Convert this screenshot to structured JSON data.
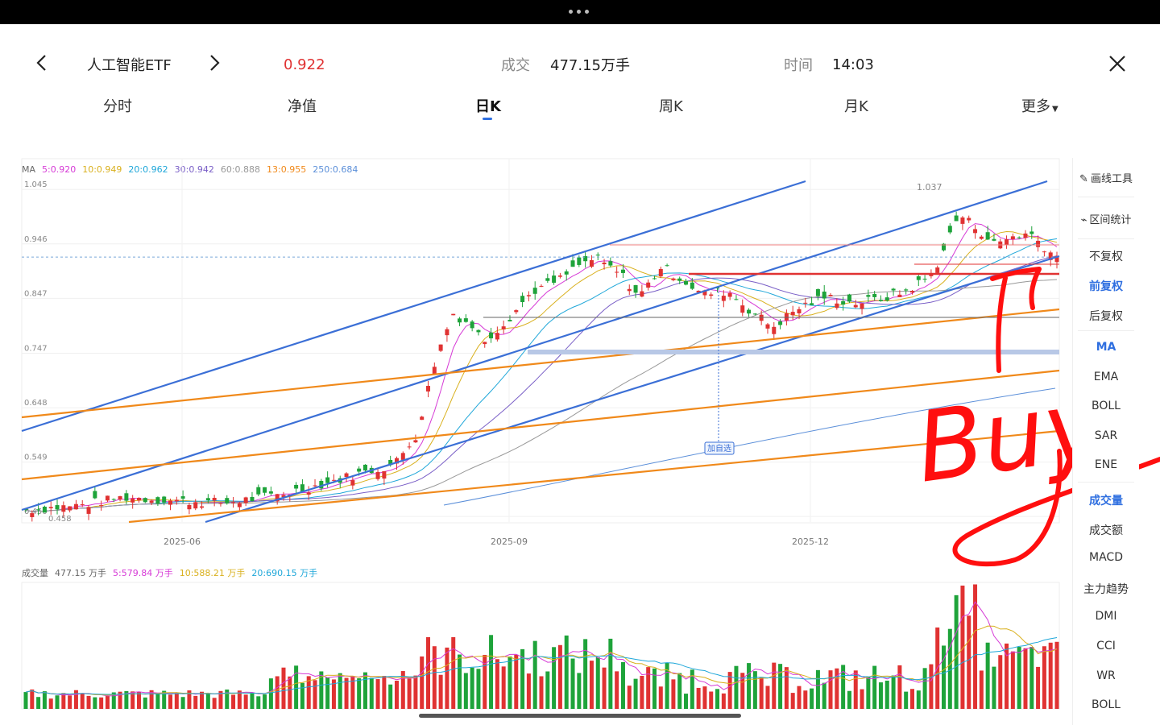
{
  "header": {
    "name": "人工智能ETF",
    "price": "0.922",
    "volume_label": "成交",
    "volume_value": "477.15万手",
    "time_label": "时间",
    "time_value": "14:03"
  },
  "tabs": [
    {
      "label": "分时"
    },
    {
      "label": "净值"
    },
    {
      "label": "日K",
      "active": true
    },
    {
      "label": "周K"
    },
    {
      "label": "月K"
    },
    {
      "label": "更多"
    }
  ],
  "ma_legend": {
    "prefix": "MA",
    "items": [
      {
        "label": "5:0.920",
        "color": "#d63ad6"
      },
      {
        "label": "10:0.949",
        "color": "#d9b01d"
      },
      {
        "label": "20:0.962",
        "color": "#1fa7d9"
      },
      {
        "label": "30:0.942",
        "color": "#7a5fc7"
      },
      {
        "label": "60:0.888",
        "color": "#999999"
      },
      {
        "label": "13:0.955",
        "color": "#f0891a"
      },
      {
        "label": "250:0.684",
        "color": "#5b8fd9"
      }
    ]
  },
  "volume_legend": {
    "prefix": "成交量",
    "items": [
      {
        "label": "477.15 万手",
        "color": "#666666"
      },
      {
        "label": "5:579.84 万手",
        "color": "#d63ad6"
      },
      {
        "label": "10:588.21 万手",
        "color": "#d9b01d"
      },
      {
        "label": "20:690.15 万手",
        "color": "#1fa7d9"
      }
    ]
  },
  "chart_data": {
    "type": "candlestick",
    "y_axis_ticks": [
      "1.045",
      "0.946",
      "0.847",
      "0.747",
      "0.648",
      "0.549",
      "0.450"
    ],
    "x_axis_ticks": [
      "2025-06",
      "2025-09",
      "2025-12"
    ],
    "ylim": [
      0.44,
      1.06
    ],
    "high_label": "1.037",
    "low_label": "0.458",
    "reference_price": 0.922,
    "add_watch_label": "加自选",
    "annotation": "Buy",
    "colors": {
      "up": "#e03232",
      "down": "#1ea33a"
    }
  },
  "side_panel": {
    "tools": [
      {
        "label": "画线工具",
        "icon": "pen-icon"
      },
      {
        "label": "区间统计",
        "icon": "range-stat-icon"
      }
    ],
    "adjust": [
      {
        "label": "不复权"
      },
      {
        "label": "前复权",
        "active": true
      },
      {
        "label": "后复权"
      }
    ],
    "main_indicators": [
      {
        "label": "MA",
        "active": true
      },
      {
        "label": "EMA"
      },
      {
        "label": "BOLL"
      },
      {
        "label": "SAR"
      },
      {
        "label": "ENE"
      }
    ],
    "sub_indicators": [
      {
        "label": "成交量",
        "active": true
      },
      {
        "label": "成交额"
      },
      {
        "label": "MACD"
      },
      {
        "label": "主力趋势"
      },
      {
        "label": "DMI"
      },
      {
        "label": "CCI"
      },
      {
        "label": "WR"
      },
      {
        "label": "BOLL"
      }
    ]
  }
}
